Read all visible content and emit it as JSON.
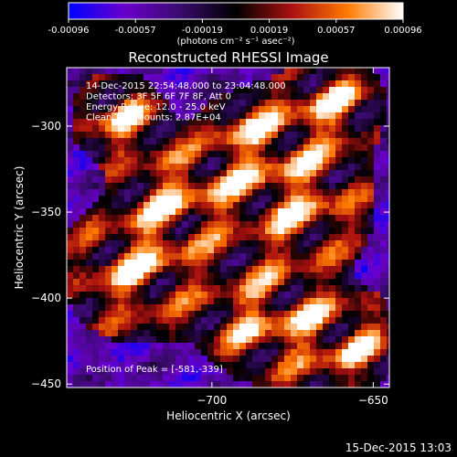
{
  "chart_data": {
    "type": "heatmap",
    "title": "Reconstructed RHESSI Image",
    "xlabel": "Heliocentric X (arcsec)",
    "ylabel": "Heliocentric Y (arcsec)",
    "xlim": [
      -745,
      -645
    ],
    "ylim": [
      -452,
      -266
    ],
    "x_ticks": [
      -700,
      -650,
      -600
    ],
    "y_ticks": [
      -300,
      -350,
      -400,
      -450
    ],
    "colorbar": {
      "ticks": [
        "-0.00096",
        "-0.00057",
        "-0.00019",
        "0.00019",
        "0.00057",
        "0.00096"
      ],
      "unit_label": "(photons cm⁻² s⁻¹ asec⁻²)",
      "range": [
        -0.00096,
        0.00096
      ],
      "colors": [
        "#0000ff",
        "#6a00cc",
        "#3a0b6e",
        "#000000",
        "#aa1010",
        "#ff7a00",
        "#ffffff"
      ]
    },
    "annotations": [
      "14-Dec-2015 22:54:48.000 to 23:04:48.000",
      "Detectors: 3F 5F 6F 7F 8F, Att 0",
      "Energy Range: 12.0 - 25.0 keV",
      "Clean    Total counts: 2.87E+04"
    ],
    "peak_label": "Position of Peak = [-581,-339]",
    "peak_position": [
      -581,
      -339
    ],
    "grid": false
  },
  "footer": {
    "timestamp": "15-Dec-2015 13:03"
  }
}
